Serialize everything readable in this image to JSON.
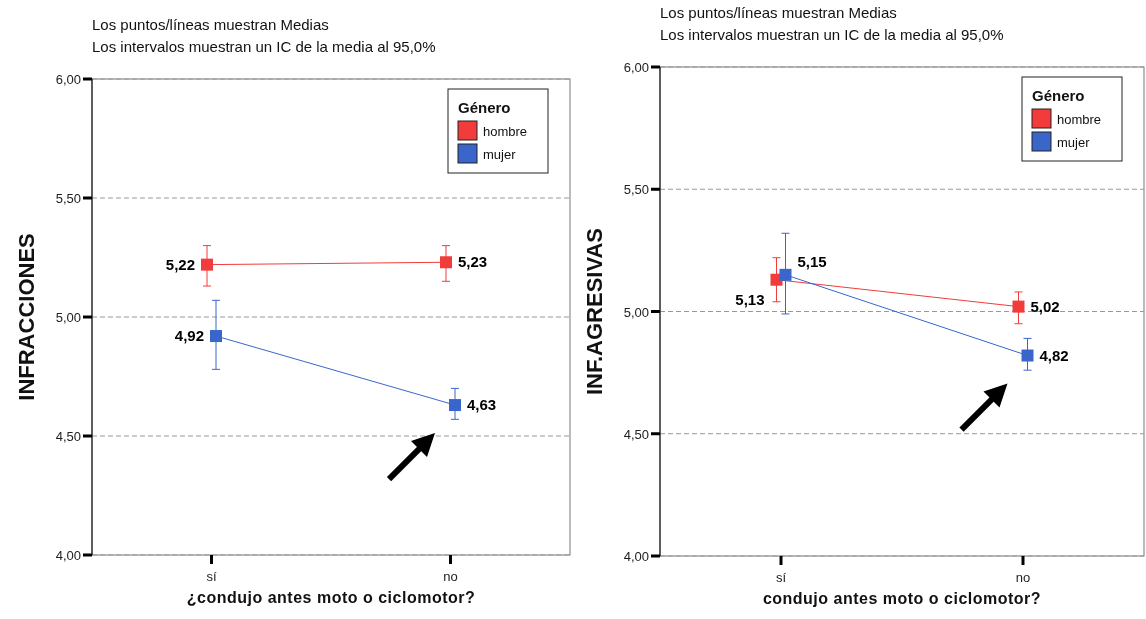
{
  "chart_data": [
    {
      "type": "line",
      "title": "Los puntos/líneas muestran Medias",
      "subtitle": "Los intervalos muestran un IC de la media al 95,0%",
      "xlabel": "¿condujo antes moto o ciclomotor?",
      "ylabel": "INFRACCIONES",
      "legend_title": "Género",
      "categories": [
        "sí",
        "no"
      ],
      "series": [
        {
          "name": "hombre",
          "color": "#f23c3c",
          "values": [
            5.22,
            5.23
          ],
          "errors": [
            [
              5.13,
              5.3
            ],
            [
              5.15,
              5.3
            ]
          ],
          "value_labels": [
            "5,22",
            "5,23"
          ]
        },
        {
          "name": "mujer",
          "color": "#3a66cc",
          "values": [
            4.92,
            4.63
          ],
          "errors": [
            [
              4.78,
              5.07
            ],
            [
              4.57,
              4.7
            ]
          ],
          "value_labels": [
            "4,92",
            "4,63"
          ]
        }
      ],
      "ylim": [
        4,
        6
      ],
      "yticks": [
        {
          "value": 4,
          "label": "4,00"
        },
        {
          "value": 4.5,
          "label": "4,50"
        },
        {
          "value": 5,
          "label": "5,00"
        },
        {
          "value": 5.5,
          "label": "5,50"
        },
        {
          "value": 6,
          "label": "6,00"
        }
      ],
      "grid": "y",
      "legend": "top right",
      "marker": "square",
      "line_style": "solid"
    },
    {
      "type": "line",
      "title": "Los puntos/líneas muestran Medias",
      "subtitle": "Los intervalos muestran un IC de la media al 95,0%",
      "xlabel": "condujo antes moto o ciclomotor?",
      "ylabel": "INF.AGRESIVAS",
      "legend_title": "Género",
      "categories": [
        "sí",
        "no"
      ],
      "series": [
        {
          "name": "hombre",
          "color": "#f23c3c",
          "values": [
            5.13,
            5.02
          ],
          "errors": [
            [
              5.04,
              5.22
            ],
            [
              4.95,
              5.08
            ]
          ],
          "value_labels": [
            "5,13",
            "5,02"
          ]
        },
        {
          "name": "mujer",
          "color": "#3a66cc",
          "values": [
            5.15,
            4.82
          ],
          "errors": [
            [
              4.99,
              5.32
            ],
            [
              4.76,
              4.89
            ]
          ],
          "value_labels": [
            "5,15",
            "4,82"
          ]
        }
      ],
      "ylim": [
        4,
        6
      ],
      "yticks": [
        {
          "value": 4,
          "label": "4,00"
        },
        {
          "value": 4.5,
          "label": "4,50"
        },
        {
          "value": 5,
          "label": "5,00"
        },
        {
          "value": 5.5,
          "label": "5,50"
        },
        {
          "value": 6,
          "label": "6,00"
        }
      ],
      "grid": "y",
      "legend": "top right",
      "marker": "square",
      "line_style": "solid"
    }
  ]
}
